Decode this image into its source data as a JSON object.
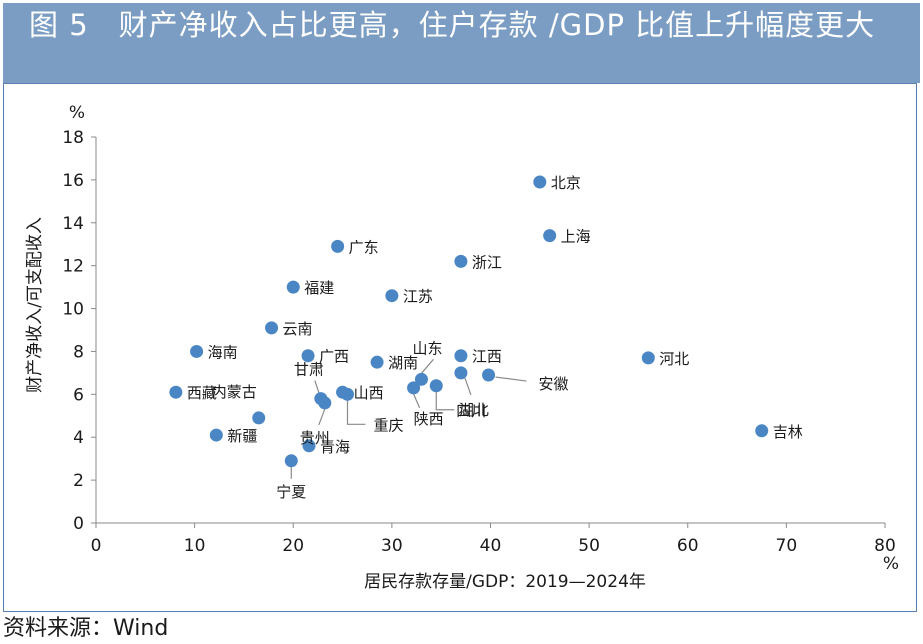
{
  "header": {
    "title": "图 5　财产净收入占比更高，住户存款 /GDP 比值上升幅度更大"
  },
  "footer": {
    "source": "资料来源：Wind"
  },
  "colors": {
    "header_bg": "#7c9dc3",
    "point": "#4a86c4",
    "frame": "#5a7fb0"
  },
  "chart_data": {
    "type": "scatter",
    "title": "",
    "xlabel": "居民存款存量/GDP：2019—2024年",
    "ylabel": "财产净收入/可支配收入",
    "x_unit": "%",
    "y_unit": "%",
    "xlim": [
      0,
      80
    ],
    "ylim": [
      0,
      18
    ],
    "xticks": [
      0,
      10,
      20,
      30,
      40,
      50,
      60,
      70,
      80
    ],
    "yticks": [
      0,
      2,
      4,
      6,
      8,
      10,
      12,
      14,
      16,
      18
    ],
    "grid": false,
    "legend": "none",
    "points": [
      {
        "name": "北京",
        "x": 45.0,
        "y": 15.9
      },
      {
        "name": "上海",
        "x": 46.0,
        "y": 13.4
      },
      {
        "name": "广东",
        "x": 24.5,
        "y": 12.9
      },
      {
        "name": "浙江",
        "x": 37.0,
        "y": 12.2
      },
      {
        "name": "福建",
        "x": 20.0,
        "y": 11.0
      },
      {
        "name": "江苏",
        "x": 30.0,
        "y": 10.6
      },
      {
        "name": "云南",
        "x": 17.8,
        "y": 9.1
      },
      {
        "name": "海南",
        "x": 10.2,
        "y": 8.0
      },
      {
        "name": "广西",
        "x": 21.5,
        "y": 7.8
      },
      {
        "name": "湖南",
        "x": 28.5,
        "y": 7.5
      },
      {
        "name": "江西",
        "x": 37.0,
        "y": 7.8
      },
      {
        "name": "河北",
        "x": 56.0,
        "y": 7.7
      },
      {
        "name": "山东",
        "x": 33.0,
        "y": 6.7
      },
      {
        "name": "湖北",
        "x": 37.0,
        "y": 7.0
      },
      {
        "name": "安徽",
        "x": 39.8,
        "y": 6.9
      },
      {
        "name": "西藏",
        "x": 8.1,
        "y": 6.1
      },
      {
        "name": "内蒙古",
        "x": 16.5,
        "y": 4.9
      },
      {
        "name": "甘肃",
        "x": 22.8,
        "y": 5.8
      },
      {
        "name": "贵州",
        "x": 23.2,
        "y": 5.6
      },
      {
        "name": "山西",
        "x": 25.0,
        "y": 6.1
      },
      {
        "name": "重庆",
        "x": 25.5,
        "y": 6.0
      },
      {
        "name": "陕西",
        "x": 32.2,
        "y": 6.3
      },
      {
        "name": "四川",
        "x": 34.5,
        "y": 6.4
      },
      {
        "name": "新疆",
        "x": 12.2,
        "y": 4.1
      },
      {
        "name": "青海",
        "x": 21.6,
        "y": 3.6
      },
      {
        "name": "宁夏",
        "x": 19.8,
        "y": 2.9
      },
      {
        "name": "吉林",
        "x": 67.5,
        "y": 4.3
      }
    ]
  }
}
